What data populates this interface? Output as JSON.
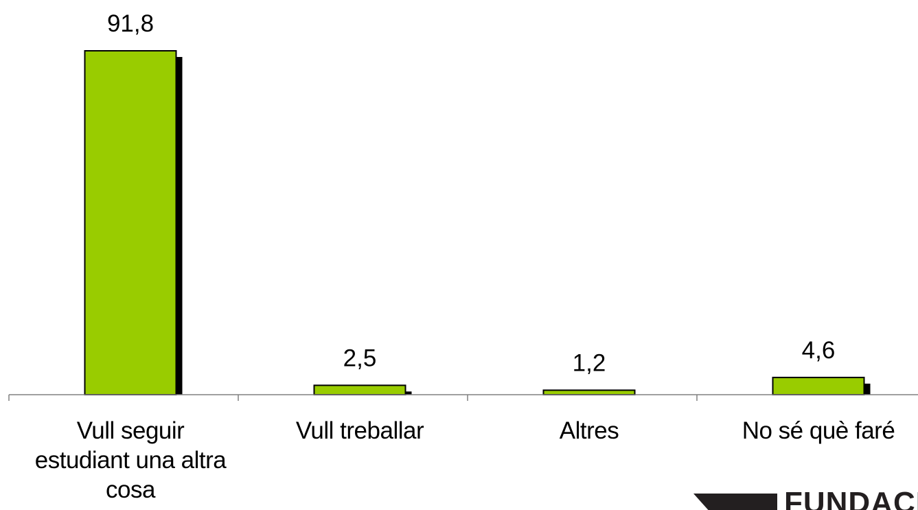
{
  "chart_data": {
    "type": "bar",
    "categories": [
      "Vull seguir estudiant una altra cosa",
      "Vull treballar",
      "Altres",
      "No sé què faré"
    ],
    "category_lines": [
      [
        "Vull seguir",
        "estudiant una altra",
        "cosa"
      ],
      [
        "Vull treballar"
      ],
      [
        "Altres"
      ],
      [
        "No sé què faré"
      ]
    ],
    "values": [
      91.8,
      2.5,
      1.2,
      4.6
    ],
    "value_labels": [
      "91,8",
      "2,5",
      "1,2",
      "4,6"
    ],
    "ylim": [
      0,
      100
    ],
    "grid": false,
    "legend": "none",
    "colors": {
      "bar_fill": "#99cc00",
      "bar_shadow": "#000000",
      "bar_stroke": "#000000",
      "axis": "#808080"
    }
  },
  "logo": {
    "text": "FUNDACI",
    "color": "#231f20"
  }
}
